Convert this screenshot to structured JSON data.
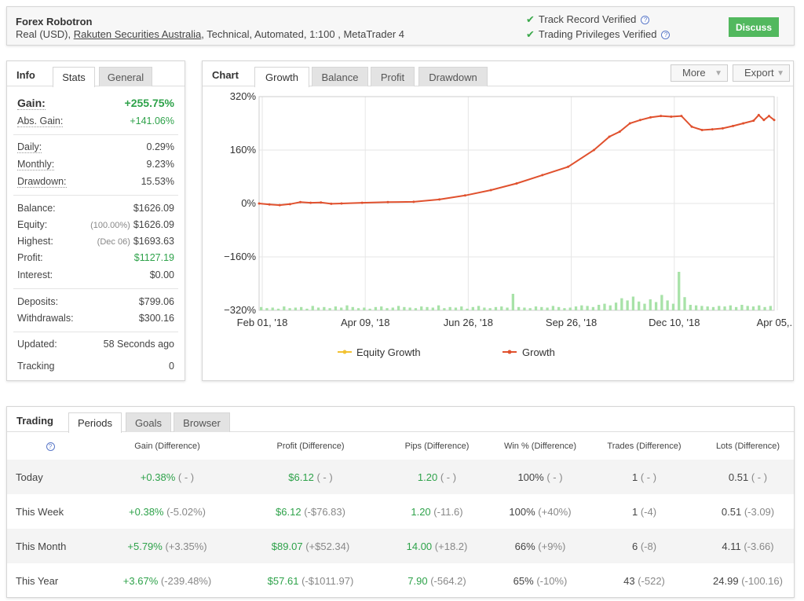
{
  "header": {
    "title": "Forex Robotron",
    "sub_prefix": "Real (USD),",
    "broker_link": "Rakuten Securities Australia",
    "sub_suffix": ", Technical, Automated, 1:100 , MetaTrader 4",
    "verified_1": "Track Record Verified",
    "verified_2": "Trading Privileges Verified",
    "discuss_label": "Discuss",
    "check_icon": "check-icon",
    "help_icon": "help-icon"
  },
  "info": {
    "label": "Info",
    "tabs": [
      "Stats",
      "General"
    ],
    "gain": {
      "label": "Gain:",
      "value": "+255.75%"
    },
    "abs_gain": {
      "label": "Abs. Gain:",
      "value": "+141.06%"
    },
    "daily": {
      "label": "Daily:",
      "value": "0.29%"
    },
    "monthly": {
      "label": "Monthly:",
      "value": "9.23%"
    },
    "drawdown": {
      "label": "Drawdown:",
      "value": "15.53%"
    },
    "balance": {
      "label": "Balance:",
      "value": "$1626.09"
    },
    "equity": {
      "label": "Equity:",
      "note": "(100.00%)",
      "value": "$1626.09"
    },
    "highest": {
      "label": "Highest:",
      "note": "(Dec 06)",
      "value": "$1693.63"
    },
    "profit": {
      "label": "Profit:",
      "value": "$1127.19"
    },
    "interest": {
      "label": "Interest:",
      "value": "$0.00"
    },
    "deposits": {
      "label": "Deposits:",
      "value": "$799.06"
    },
    "withdrawals": {
      "label": "Withdrawals:",
      "value": "$300.16"
    },
    "updated": {
      "label": "Updated:",
      "value": "58 Seconds ago"
    },
    "tracking": {
      "label": "Tracking",
      "value": "0"
    }
  },
  "chart": {
    "label": "Chart",
    "tabs": [
      "Growth",
      "Balance",
      "Profit",
      "Drawdown"
    ],
    "more_label": "More",
    "export_label": "Export"
  },
  "chart_data": {
    "type": "line",
    "title": "",
    "ylim": [
      -320,
      320
    ],
    "y_ticks": [
      "320%",
      "160%",
      "0%",
      "−160%",
      "−320%"
    ],
    "x_ticks": [
      "Feb 01, '18",
      "Apr 09, '18",
      "Jun 26, '18",
      "Sep 26, '18",
      "Dec 10, '18",
      "Apr 05,..."
    ],
    "legend": [
      "Equity Growth",
      "Growth"
    ],
    "colors": {
      "equity": "#f2c232",
      "growth": "#e0512e",
      "volume": "#a8e2a8"
    },
    "series": [
      {
        "name": "Growth",
        "x": [
          0,
          0.02,
          0.04,
          0.06,
          0.08,
          0.1,
          0.12,
          0.14,
          0.16,
          0.2,
          0.25,
          0.3,
          0.35,
          0.4,
          0.45,
          0.5,
          0.55,
          0.6,
          0.65,
          0.68,
          0.7,
          0.72,
          0.74,
          0.76,
          0.78,
          0.8,
          0.82,
          0.84,
          0.86,
          0.88,
          0.9,
          0.92,
          0.94,
          0.96,
          0.97,
          0.98,
          0.99,
          1.0
        ],
        "values": [
          0,
          -3,
          -5,
          -2,
          4,
          2,
          3,
          -1,
          0,
          2,
          4,
          5,
          12,
          24,
          40,
          60,
          85,
          110,
          160,
          200,
          215,
          240,
          250,
          258,
          262,
          260,
          262,
          230,
          220,
          222,
          225,
          232,
          240,
          248,
          265,
          250,
          262,
          250
        ]
      }
    ],
    "volume_bars": [
      6,
      4,
      5,
      3,
      7,
      4,
      5,
      6,
      3,
      8,
      5,
      6,
      4,
      7,
      5,
      9,
      6,
      4,
      5,
      3,
      6,
      7,
      4,
      5,
      8,
      6,
      5,
      4,
      7,
      6,
      5,
      9,
      4,
      6,
      5,
      7,
      3,
      6,
      8,
      5,
      4,
      6,
      7,
      5,
      30,
      6,
      5,
      4,
      7,
      6,
      5,
      8,
      6,
      4,
      5,
      7,
      9,
      8,
      6,
      10,
      12,
      9,
      14,
      22,
      18,
      25,
      16,
      12,
      20,
      15,
      28,
      18,
      12,
      70,
      24,
      10,
      9,
      8,
      7,
      6,
      8,
      7,
      9,
      6,
      10,
      8,
      7,
      9,
      6,
      8
    ]
  },
  "trading": {
    "label": "Trading",
    "tabs": [
      "Periods",
      "Goals",
      "Browser"
    ],
    "headers": [
      "Gain (Difference)",
      "Profit (Difference)",
      "Pips (Difference)",
      "Win % (Difference)",
      "Trades (Difference)",
      "Lots (Difference)"
    ],
    "rows": [
      {
        "period": "Today",
        "gain": "+0.38%",
        "gain_d": "( - )",
        "profit": "$6.12",
        "profit_d": "( - )",
        "pips": "1.20",
        "pips_d": "( - )",
        "win": "100%",
        "win_d": "( - )",
        "trades": "1",
        "trades_d": "( - )",
        "lots": "0.51",
        "lots_d": "( - )"
      },
      {
        "period": "This Week",
        "gain": "+0.38%",
        "gain_d": "(-5.02%)",
        "profit": "$6.12",
        "profit_d": "(-$76.83)",
        "pips": "1.20",
        "pips_d": "(-11.6)",
        "win": "100%",
        "win_d": "(+40%)",
        "trades": "1",
        "trades_d": "(-4)",
        "lots": "0.51",
        "lots_d": "(-3.09)"
      },
      {
        "period": "This Month",
        "gain": "+5.79%",
        "gain_d": "(+3.35%)",
        "profit": "$89.07",
        "profit_d": "(+$52.34)",
        "pips": "14.00",
        "pips_d": "(+18.2)",
        "win": "66%",
        "win_d": "(+9%)",
        "trades": "6",
        "trades_d": "(-8)",
        "lots": "4.11",
        "lots_d": "(-3.66)"
      },
      {
        "period": "This Year",
        "gain": "+3.67%",
        "gain_d": "(-239.48%)",
        "profit": "$57.61",
        "profit_d": "(-$1011.97)",
        "pips": "7.90",
        "pips_d": "(-564.2)",
        "win": "65%",
        "win_d": "(-10%)",
        "trades": "43",
        "trades_d": "(-522)",
        "lots": "24.99",
        "lots_d": "(-100.16)"
      }
    ]
  }
}
